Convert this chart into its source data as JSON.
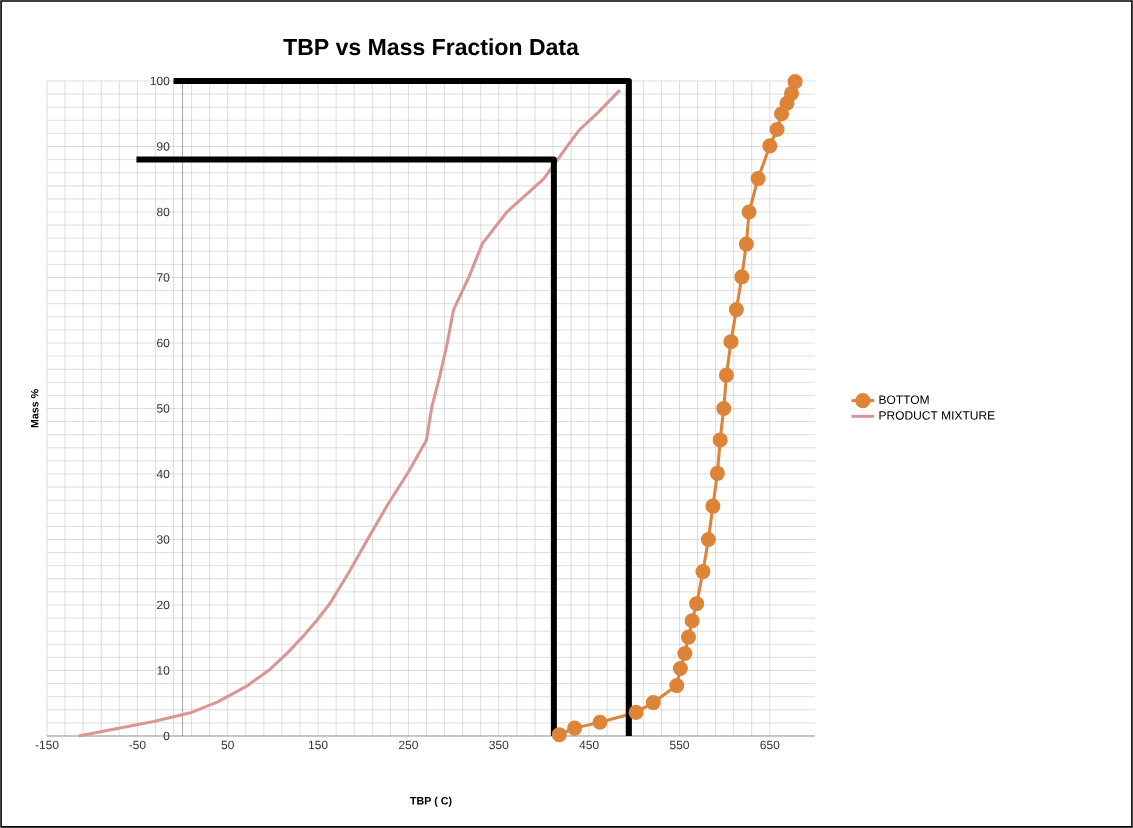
{
  "chart_data": {
    "type": "line",
    "title": "TBP vs Mass Fraction Data",
    "xlabel": "TBP ( C)",
    "ylabel": "Mass %",
    "xlim": [
      -150,
      700
    ],
    "xticks": [
      -150,
      -50,
      50,
      150,
      250,
      350,
      450,
      550,
      650
    ],
    "ylim": [
      0,
      100
    ],
    "yticks": [
      0,
      10,
      20,
      30,
      40,
      50,
      60,
      70,
      80,
      90,
      100
    ],
    "grid": true,
    "legend": "right",
    "series": [
      {
        "name": "BOTTOM",
        "color": "#dd8439",
        "marker": "circle",
        "x": [
          417,
          434,
          462,
          502,
          521,
          547,
          551,
          556,
          560,
          564,
          569,
          576,
          582,
          587,
          592,
          595,
          599,
          602,
          607,
          613,
          619,
          624,
          627,
          637,
          650,
          658,
          663,
          669,
          674,
          678
        ],
        "values": [
          0.2,
          1.2,
          2.1,
          3.6,
          5.1,
          7.7,
          10.3,
          12.6,
          15.1,
          17.6,
          20.2,
          25.1,
          30,
          35.1,
          40.1,
          45.2,
          50,
          55.1,
          60.2,
          65.1,
          70.1,
          75.1,
          80,
          85.1,
          90.1,
          92.6,
          95,
          96.6,
          98.1,
          99.9
        ]
      },
      {
        "name": "PRODUCT MIXTURE",
        "color": "#d99694",
        "marker": "none",
        "x": [
          -115,
          -32,
          10,
          39,
          71,
          97,
          117,
          134,
          149,
          163,
          185,
          206,
          227,
          250,
          270,
          276,
          285,
          293,
          300,
          317,
          332,
          359,
          400,
          426,
          439,
          460,
          484
        ],
        "values": [
          0,
          2.2,
          3.6,
          5.2,
          7.6,
          10.2,
          12.8,
          15.3,
          17.7,
          20.2,
          25.2,
          30.3,
          35.3,
          40.3,
          45.2,
          50.3,
          55.1,
          60,
          65.1,
          70.1,
          75.2,
          80,
          85.1,
          90.1,
          92.5,
          95.2,
          98.6
        ]
      },
      {
        "color": "#000000",
        "marker": "none",
        "x": [
          -10,
          494,
          494
        ],
        "values": [
          100,
          100,
          0
        ]
      },
      {
        "color": "#000000",
        "marker": "none",
        "x": [
          -51,
          411,
          411
        ],
        "values": [
          88,
          88,
          0
        ]
      }
    ]
  }
}
